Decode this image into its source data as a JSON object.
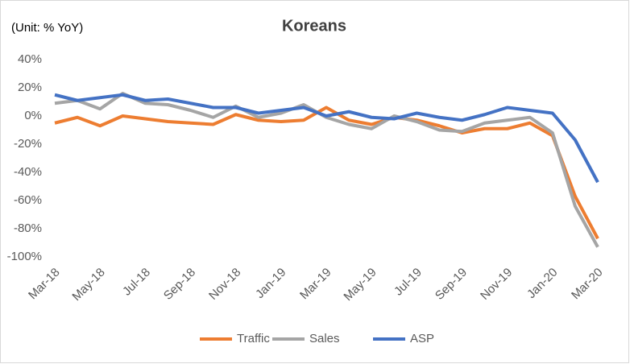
{
  "chart_data": {
    "type": "line",
    "title": "Koreans",
    "annotation": "(Unit: % YoY)",
    "categories": [
      "Mar-18",
      null,
      "May-18",
      null,
      "Jul-18",
      null,
      "Sep-18",
      null,
      "Nov-18",
      null,
      "Jan-19",
      null,
      "Mar-19",
      null,
      "May-19",
      null,
      "Jul-19",
      null,
      "Sep-19",
      null,
      "Nov-19",
      null,
      "Jan-20",
      null,
      "Mar-20"
    ],
    "series": [
      {
        "name": "Traffic",
        "color": "#ed7d31",
        "values": [
          -5,
          -1,
          -7,
          0,
          -2,
          -4,
          -5,
          -6,
          1,
          -3,
          -4,
          -3,
          6,
          -3,
          -6,
          -1,
          -3,
          -7,
          -12,
          -9,
          -9,
          -5,
          -14,
          -57,
          -87
        ]
      },
      {
        "name": "Sales",
        "color": "#a5a5a5",
        "values": [
          9,
          11,
          5,
          16,
          9,
          8,
          4,
          -1,
          7,
          -1,
          2,
          8,
          -1,
          -6,
          -9,
          0,
          -4,
          -10,
          -11,
          -5,
          -3,
          -1,
          -12,
          -64,
          -93
        ]
      },
      {
        "name": "ASP",
        "color": "#4472c4",
        "values": [
          15,
          11,
          13,
          15,
          11,
          12,
          9,
          6,
          6,
          2,
          4,
          6,
          0,
          3,
          -1,
          -2,
          2,
          -1,
          -3,
          1,
          6,
          4,
          2,
          -17,
          -47
        ]
      }
    ],
    "ylim": [
      -100,
      40
    ],
    "yticks": [
      {
        "value": -100,
        "label": "-100%"
      },
      {
        "value": -80,
        "label": "-80%"
      },
      {
        "value": -60,
        "label": "-60%"
      },
      {
        "value": -40,
        "label": "-40%"
      },
      {
        "value": -20,
        "label": "-20%"
      },
      {
        "value": 0,
        "label": "0%"
      },
      {
        "value": 20,
        "label": "20%"
      },
      {
        "value": 40,
        "label": "40%"
      }
    ],
    "grid": false,
    "legend": "bottom"
  }
}
